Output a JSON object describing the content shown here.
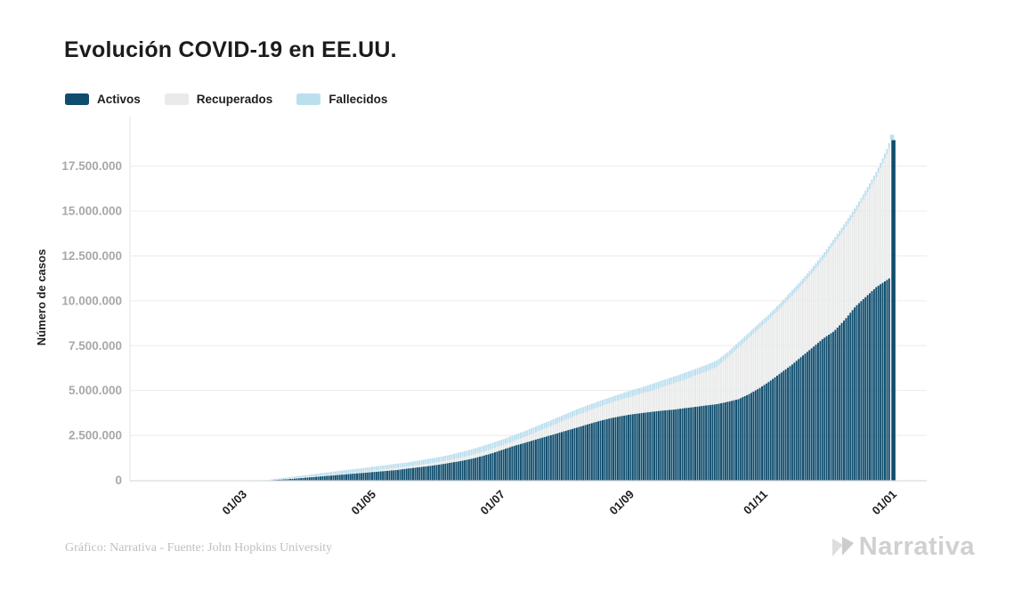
{
  "title": "Evolución COVID-19 en EE.UU.",
  "legend": {
    "items": [
      {
        "label": "Activos",
        "color": "#0f4d6e"
      },
      {
        "label": "Recuperados",
        "color": "#e9eaea"
      },
      {
        "label": "Fallecidos",
        "color": "#bcdfee"
      }
    ]
  },
  "footer": {
    "credit": "Gráfico: Narrativa - Fuente: John Hopkins University",
    "brand": "Narrativa"
  },
  "colors": {
    "activos": "#0f4d6e",
    "recuperados": "#e9eaea",
    "fallecidos": "#bcdfee",
    "gridline": "#ececec",
    "axis_line": "#e6e6e6",
    "y_tick_text": "#a8a8a8",
    "x_tick_text": "#1d1d1d",
    "axis_title_text": "#1d1d1d"
  },
  "chart_data": {
    "type": "area",
    "stacked": true,
    "title": "Evolución COVID-19 en EE.UU.",
    "xlabel": "",
    "ylabel": "Número de casos",
    "units": "millions of cases (cumulative, stacked)",
    "ylim_millions": [
      0,
      19.5
    ],
    "grid": "horizontal",
    "legend_position": "top-left",
    "series_names": [
      "Activos",
      "Recuperados",
      "Fallecidos"
    ],
    "y_ticks": [
      {
        "value_millions": 0,
        "label": "0"
      },
      {
        "value_millions": 2.5,
        "label": "2.500.000"
      },
      {
        "value_millions": 5,
        "label": "5.000.000"
      },
      {
        "value_millions": 7.5,
        "label": "7.500.000"
      },
      {
        "value_millions": 10,
        "label": "10.000.000"
      },
      {
        "value_millions": 12.5,
        "label": "12.500.000"
      },
      {
        "value_millions": 15,
        "label": "15.000.000"
      },
      {
        "value_millions": 17.5,
        "label": "17.500.000"
      }
    ],
    "x_ticks": [
      {
        "label": "01/03",
        "pos": 0.1385
      },
      {
        "label": "01/05",
        "pos": 0.3006
      },
      {
        "label": "01/07",
        "pos": 0.4626
      },
      {
        "label": "01/09",
        "pos": 0.6246
      },
      {
        "label": "01/11",
        "pos": 0.7922
      },
      {
        "label": "01/01",
        "pos": 0.9542
      }
    ],
    "samples": {
      "pos": [
        0.1497,
        0.1721,
        0.1855,
        0.1989,
        0.2123,
        0.2257,
        0.2391,
        0.2525,
        0.2659,
        0.2793,
        0.2928,
        0.3062,
        0.3196,
        0.333,
        0.3464,
        0.3598,
        0.3732,
        0.3866,
        0.4,
        0.4134,
        0.4268,
        0.4402,
        0.4536,
        0.467,
        0.4804,
        0.4939,
        0.5073,
        0.5207,
        0.5341,
        0.5475,
        0.5609,
        0.5743,
        0.5877,
        0.6011,
        0.6145,
        0.6279,
        0.6413,
        0.6547,
        0.6682,
        0.6816,
        0.695,
        0.7084,
        0.7218,
        0.7352,
        0.7486,
        0.762,
        0.7754,
        0.7888,
        0.8022,
        0.8156,
        0.8291,
        0.8425,
        0.8559,
        0.8693,
        0.8827,
        0.8961,
        0.9095,
        0.9229,
        0.9363,
        0.9497,
        0.9542
      ],
      "activos_millions": [
        0,
        0,
        0.03,
        0.07,
        0.12,
        0.17,
        0.22,
        0.27,
        0.32,
        0.37,
        0.42,
        0.47,
        0.52,
        0.57,
        0.65,
        0.72,
        0.79,
        0.87,
        0.97,
        1.07,
        1.19,
        1.34,
        1.51,
        1.71,
        1.91,
        2.08,
        2.26,
        2.43,
        2.6,
        2.78,
        2.95,
        3.13,
        3.3,
        3.45,
        3.57,
        3.67,
        3.75,
        3.82,
        3.89,
        3.94,
        4.02,
        4.09,
        4.17,
        4.24,
        4.37,
        4.51,
        4.79,
        5.13,
        5.53,
        5.98,
        6.42,
        6.92,
        7.41,
        7.91,
        8.31,
        8.95,
        9.69,
        10.24,
        10.79,
        11.18,
        11.33
      ],
      "activos_mas_recuperados_millions": [
        0,
        0,
        0.03,
        0.1,
        0.15,
        0.2,
        0.25,
        0.3,
        0.35,
        0.4,
        0.47,
        0.55,
        0.62,
        0.69,
        0.77,
        0.84,
        0.92,
        1.02,
        1.12,
        1.24,
        1.39,
        1.56,
        1.76,
        1.96,
        2.18,
        2.41,
        2.65,
        2.9,
        3.15,
        3.4,
        3.65,
        3.87,
        4.09,
        4.29,
        4.49,
        4.66,
        4.84,
        5.01,
        5.21,
        5.41,
        5.6,
        5.83,
        6.05,
        6.3,
        6.82,
        7.37,
        7.91,
        8.46,
        9.0,
        9.6,
        10.24,
        10.88,
        11.58,
        12.32,
        13.17,
        14.01,
        14.9,
        15.9,
        16.94,
        18.23,
        18.77
      ],
      "total_millions": [
        0,
        0.02,
        0.1,
        0.17,
        0.25,
        0.32,
        0.4,
        0.47,
        0.55,
        0.62,
        0.69,
        0.77,
        0.84,
        0.92,
        0.99,
        1.09,
        1.19,
        1.29,
        1.41,
        1.56,
        1.71,
        1.89,
        2.08,
        2.28,
        2.51,
        2.73,
        2.98,
        3.22,
        3.47,
        3.72,
        3.97,
        4.19,
        4.41,
        4.61,
        4.81,
        5.01,
        5.18,
        5.38,
        5.58,
        5.78,
        5.98,
        6.2,
        6.42,
        6.67,
        7.12,
        7.66,
        8.21,
        8.75,
        9.3,
        9.89,
        10.54,
        11.18,
        11.88,
        12.62,
        13.46,
        14.31,
        15.2,
        16.19,
        17.23,
        18.52,
        19.07
      ]
    },
    "final_bar": {
      "pos": 0.9556,
      "activos_millions": 18.95,
      "recuperados_millions": 0,
      "total_millions": 19.25
    }
  }
}
